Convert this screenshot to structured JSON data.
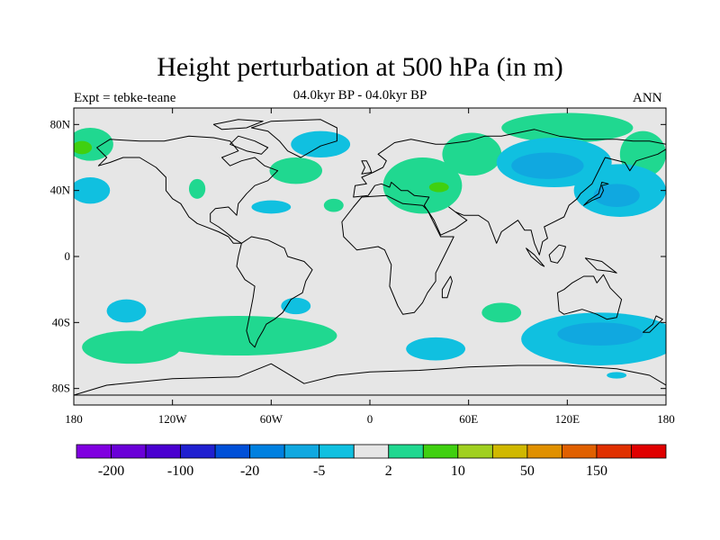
{
  "title": "Height perturbation at 500 hPa (in m)",
  "subtitle": "04.0kyr BP - 04.0kyr BP",
  "left_label": "Expt = tebke-teane",
  "right_label": "ANN",
  "map": {
    "projection": "cylindrical-equidistant",
    "lon_range": [
      -180,
      180
    ],
    "lat_range": [
      -90,
      90
    ],
    "lon_ticks": [
      {
        "value": -180,
        "label": "180"
      },
      {
        "value": -120,
        "label": "120W"
      },
      {
        "value": -60,
        "label": "60W"
      },
      {
        "value": 0,
        "label": "0"
      },
      {
        "value": 60,
        "label": "60E"
      },
      {
        "value": 120,
        "label": "120E"
      },
      {
        "value": 180,
        "label": "180"
      }
    ],
    "lat_ticks": [
      {
        "value": 80,
        "label": "80N"
      },
      {
        "value": 40,
        "label": "40N"
      },
      {
        "value": 0,
        "label": "0"
      },
      {
        "value": -40,
        "label": "40S"
      },
      {
        "value": -80,
        "label": "80S"
      }
    ],
    "background_color": "#e6e6e6"
  },
  "colorbar": {
    "colors": [
      "#8000e0",
      "#6a00d8",
      "#4a00d0",
      "#2020d0",
      "#0050d8",
      "#0080e0",
      "#10a8e0",
      "#10c0e0",
      "#e6e6e6",
      "#20d890",
      "#40d010",
      "#a0d020",
      "#d0b800",
      "#e09000",
      "#e06000",
      "#e03000",
      "#e00000"
    ],
    "labels": [
      {
        "boundary": 1,
        "text": "-200"
      },
      {
        "boundary": 3,
        "text": "-100"
      },
      {
        "boundary": 5,
        "text": "-20"
      },
      {
        "boundary": 7,
        "text": "-5"
      },
      {
        "boundary": 9,
        "text": "2"
      },
      {
        "boundary": 11,
        "text": "10"
      },
      {
        "boundary": 13,
        "text": "50"
      },
      {
        "boundary": 15,
        "text": "150"
      }
    ]
  },
  "regions": [
    {
      "color": "#10c0e0",
      "lon": -30,
      "lat": 68,
      "rlon": 18,
      "rlat": 8
    },
    {
      "color": "#20d890",
      "lon": -45,
      "lat": 52,
      "rlon": 16,
      "rlat": 8
    },
    {
      "color": "#10c0e0",
      "lon": -170,
      "lat": 40,
      "rlon": 12,
      "rlat": 8
    },
    {
      "color": "#20d890",
      "lon": -170,
      "lat": 68,
      "rlon": 14,
      "rlat": 10
    },
    {
      "color": "#40d010",
      "lon": -175,
      "lat": 66,
      "rlon": 6,
      "rlat": 4
    },
    {
      "color": "#20d890",
      "lon": -105,
      "lat": 41,
      "rlon": 5,
      "rlat": 6
    },
    {
      "color": "#10c0e0",
      "lon": -60,
      "lat": 30,
      "rlon": 12,
      "rlat": 4
    },
    {
      "color": "#20d890",
      "lon": -22,
      "lat": 31,
      "rlon": 6,
      "rlat": 4
    },
    {
      "color": "#20d890",
      "lon": 32,
      "lat": 43,
      "rlon": 24,
      "rlat": 17
    },
    {
      "color": "#20d890",
      "lon": 62,
      "lat": 62,
      "rlon": 18,
      "rlat": 13
    },
    {
      "color": "#40d010",
      "lon": 42,
      "lat": 42,
      "rlon": 6,
      "rlat": 3
    },
    {
      "color": "#20d890",
      "lon": 120,
      "lat": 78,
      "rlon": 40,
      "rlat": 9
    },
    {
      "color": "#20d890",
      "lon": 166,
      "lat": 62,
      "rlon": 14,
      "rlat": 14
    },
    {
      "color": "#10c0e0",
      "lon": 112,
      "lat": 57,
      "rlon": 35,
      "rlat": 15
    },
    {
      "color": "#10a8e0",
      "lon": 108,
      "lat": 55,
      "rlon": 22,
      "rlat": 8
    },
    {
      "color": "#10c0e0",
      "lon": 152,
      "lat": 40,
      "rlon": 28,
      "rlat": 16
    },
    {
      "color": "#10a8e0",
      "lon": 150,
      "lat": 37,
      "rlon": 14,
      "rlat": 7
    },
    {
      "color": "#10c0e0",
      "lon": -148,
      "lat": -33,
      "rlon": 12,
      "rlat": 7
    },
    {
      "color": "#10c0e0",
      "lon": -45,
      "lat": -30,
      "rlon": 9,
      "rlat": 5
    },
    {
      "color": "#20d890",
      "lon": -80,
      "lat": -48,
      "rlon": 60,
      "rlat": 12
    },
    {
      "color": "#20d890",
      "lon": -145,
      "lat": -55,
      "rlon": 30,
      "rlat": 10
    },
    {
      "color": "#20d890",
      "lon": 80,
      "lat": -34,
      "rlon": 12,
      "rlat": 6
    },
    {
      "color": "#10c0e0",
      "lon": 40,
      "lat": -56,
      "rlon": 18,
      "rlat": 7
    },
    {
      "color": "#10c0e0",
      "lon": 140,
      "lat": -50,
      "rlon": 48,
      "rlat": 16
    },
    {
      "color": "#10a8e0",
      "lon": 140,
      "lat": -47,
      "rlon": 26,
      "rlat": 7
    },
    {
      "color": "#10c0e0",
      "lon": 150,
      "lat": -72,
      "rlon": 6,
      "rlat": 2
    }
  ],
  "continents": [
    {
      "name": "north-america",
      "points": [
        [
          -166,
          66
        ],
        [
          -158,
          71
        ],
        [
          -140,
          70
        ],
        [
          -125,
          70
        ],
        [
          -110,
          73
        ],
        [
          -95,
          72
        ],
        [
          -85,
          70
        ],
        [
          -80,
          64
        ],
        [
          -90,
          60
        ],
        [
          -85,
          55
        ],
        [
          -78,
          58
        ],
        [
          -70,
          60
        ],
        [
          -64,
          55
        ],
        [
          -56,
          52
        ],
        [
          -62,
          46
        ],
        [
          -70,
          43
        ],
        [
          -75,
          38
        ],
        [
          -80,
          32
        ],
        [
          -81,
          25
        ],
        [
          -86,
          30
        ],
        [
          -94,
          29
        ],
        [
          -97,
          26
        ],
        [
          -97,
          21
        ],
        [
          -92,
          18
        ],
        [
          -88,
          15
        ],
        [
          -83,
          11
        ],
        [
          -78,
          8
        ],
        [
          -83,
          8
        ],
        [
          -86,
          12
        ],
        [
          -92,
          15
        ],
        [
          -105,
          20
        ],
        [
          -110,
          24
        ],
        [
          -115,
          32
        ],
        [
          -120,
          35
        ],
        [
          -124,
          40
        ],
        [
          -124,
          48
        ],
        [
          -130,
          54
        ],
        [
          -140,
          60
        ],
        [
          -150,
          60
        ],
        [
          -158,
          57
        ],
        [
          -165,
          55
        ],
        [
          -160,
          60
        ],
        [
          -166,
          66
        ]
      ]
    },
    {
      "name": "greenland",
      "points": [
        [
          -72,
          78
        ],
        [
          -60,
          82
        ],
        [
          -30,
          83
        ],
        [
          -20,
          78
        ],
        [
          -20,
          70
        ],
        [
          -30,
          67
        ],
        [
          -42,
          60
        ],
        [
          -50,
          64
        ],
        [
          -55,
          70
        ],
        [
          -62,
          76
        ],
        [
          -72,
          78
        ]
      ]
    },
    {
      "name": "south-america",
      "points": [
        [
          -78,
          8
        ],
        [
          -72,
          12
        ],
        [
          -62,
          10
        ],
        [
          -52,
          5
        ],
        [
          -50,
          0
        ],
        [
          -40,
          -3
        ],
        [
          -35,
          -8
        ],
        [
          -39,
          -15
        ],
        [
          -41,
          -22
        ],
        [
          -48,
          -26
        ],
        [
          -53,
          -34
        ],
        [
          -58,
          -38
        ],
        [
          -63,
          -41
        ],
        [
          -65,
          -45
        ],
        [
          -68,
          -50
        ],
        [
          -70,
          -55
        ],
        [
          -73,
          -52
        ],
        [
          -75,
          -45
        ],
        [
          -73,
          -35
        ],
        [
          -71,
          -25
        ],
        [
          -70,
          -18
        ],
        [
          -76,
          -14
        ],
        [
          -81,
          -6
        ],
        [
          -80,
          0
        ],
        [
          -78,
          8
        ]
      ]
    },
    {
      "name": "africa",
      "points": [
        [
          -17,
          21
        ],
        [
          -10,
          30
        ],
        [
          -5,
          36
        ],
        [
          10,
          37
        ],
        [
          20,
          32
        ],
        [
          32,
          31
        ],
        [
          35,
          28
        ],
        [
          43,
          12
        ],
        [
          51,
          12
        ],
        [
          45,
          0
        ],
        [
          40,
          -10
        ],
        [
          40,
          -15
        ],
        [
          35,
          -22
        ],
        [
          32,
          -28
        ],
        [
          27,
          -34
        ],
        [
          20,
          -35
        ],
        [
          17,
          -30
        ],
        [
          12,
          -18
        ],
        [
          13,
          -5
        ],
        [
          9,
          4
        ],
        [
          5,
          6
        ],
        [
          -8,
          4
        ],
        [
          -16,
          12
        ],
        [
          -17,
          21
        ]
      ]
    },
    {
      "name": "eurasia",
      "points": [
        [
          -10,
          36
        ],
        [
          -9,
          43
        ],
        [
          -2,
          44
        ],
        [
          -5,
          48
        ],
        [
          2,
          51
        ],
        [
          8,
          54
        ],
        [
          10,
          58
        ],
        [
          5,
          62
        ],
        [
          15,
          69
        ],
        [
          25,
          71
        ],
        [
          40,
          68
        ],
        [
          45,
          68
        ],
        [
          60,
          70
        ],
        [
          70,
          73
        ],
        [
          80,
          73
        ],
        [
          100,
          77
        ],
        [
          115,
          73
        ],
        [
          130,
          71
        ],
        [
          150,
          71
        ],
        [
          160,
          70
        ],
        [
          170,
          70
        ],
        [
          180,
          68
        ],
        [
          180,
          65
        ],
        [
          175,
          62
        ],
        [
          162,
          58
        ],
        [
          158,
          52
        ],
        [
          155,
          57
        ],
        [
          143,
          60
        ],
        [
          140,
          54
        ],
        [
          135,
          44
        ],
        [
          128,
          38
        ],
        [
          126,
          35
        ],
        [
          121,
          31
        ],
        [
          118,
          24
        ],
        [
          110,
          20
        ],
        [
          106,
          18
        ],
        [
          108,
          11
        ],
        [
          105,
          9
        ],
        [
          103,
          1
        ],
        [
          100,
          8
        ],
        [
          98,
          16
        ],
        [
          94,
          16
        ],
        [
          90,
          22
        ],
        [
          80,
          15
        ],
        [
          77,
          8
        ],
        [
          72,
          21
        ],
        [
          66,
          25
        ],
        [
          57,
          25
        ],
        [
          52,
          27
        ],
        [
          48,
          30
        ],
        [
          56,
          24
        ],
        [
          59,
          22
        ],
        [
          52,
          17
        ],
        [
          43,
          13
        ],
        [
          39,
          22
        ],
        [
          33,
          31
        ],
        [
          36,
          36
        ],
        [
          27,
          37
        ],
        [
          23,
          40
        ],
        [
          19,
          40
        ],
        [
          13,
          45
        ],
        [
          12,
          42
        ],
        [
          7,
          44
        ],
        [
          3,
          43
        ],
        [
          -1,
          37
        ],
        [
          -10,
          36
        ]
      ]
    },
    {
      "name": "australia",
      "points": [
        [
          114,
          -22
        ],
        [
          118,
          -20
        ],
        [
          123,
          -16
        ],
        [
          130,
          -12
        ],
        [
          136,
          -12
        ],
        [
          138,
          -16
        ],
        [
          142,
          -11
        ],
        [
          146,
          -19
        ],
        [
          153,
          -26
        ],
        [
          150,
          -37
        ],
        [
          144,
          -38
        ],
        [
          138,
          -35
        ],
        [
          135,
          -34
        ],
        [
          129,
          -32
        ],
        [
          118,
          -35
        ],
        [
          115,
          -33
        ],
        [
          114,
          -22
        ]
      ]
    },
    {
      "name": "antarctica",
      "points": [
        [
          -180,
          -84
        ],
        [
          -160,
          -78
        ],
        [
          -120,
          -74
        ],
        [
          -80,
          -73
        ],
        [
          -60,
          -65
        ],
        [
          -55,
          -68
        ],
        [
          -40,
          -77
        ],
        [
          -20,
          -72
        ],
        [
          0,
          -70
        ],
        [
          30,
          -69
        ],
        [
          60,
          -67
        ],
        [
          90,
          -66
        ],
        [
          120,
          -66
        ],
        [
          150,
          -68
        ],
        [
          170,
          -72
        ],
        [
          180,
          -78
        ],
        [
          180,
          -84
        ]
      ]
    },
    {
      "name": "uk",
      "points": [
        [
          -5,
          50
        ],
        [
          1,
          51
        ],
        [
          0,
          54
        ],
        [
          -2,
          58
        ],
        [
          -5,
          58
        ],
        [
          -3,
          54
        ],
        [
          -5,
          50
        ]
      ]
    },
    {
      "name": "japan",
      "points": [
        [
          130,
          31
        ],
        [
          135,
          34
        ],
        [
          140,
          36
        ],
        [
          142,
          40
        ],
        [
          141,
          43
        ],
        [
          145,
          44
        ],
        [
          141,
          45
        ],
        [
          139,
          38
        ],
        [
          133,
          34
        ],
        [
          130,
          31
        ]
      ]
    },
    {
      "name": "madagascar",
      "points": [
        [
          44,
          -25
        ],
        [
          47,
          -25
        ],
        [
          50,
          -15
        ],
        [
          49,
          -12
        ],
        [
          44,
          -20
        ],
        [
          44,
          -25
        ]
      ]
    },
    {
      "name": "new-zealand",
      "points": [
        [
          166,
          -46
        ],
        [
          172,
          -41
        ],
        [
          174,
          -36
        ],
        [
          178,
          -38
        ],
        [
          174,
          -42
        ],
        [
          170,
          -46
        ],
        [
          166,
          -46
        ]
      ]
    },
    {
      "name": "new-guinea",
      "points": [
        [
          131,
          -1
        ],
        [
          141,
          -3
        ],
        [
          150,
          -10
        ],
        [
          146,
          -9
        ],
        [
          138,
          -8
        ],
        [
          131,
          -1
        ]
      ]
    },
    {
      "name": "borneo",
      "points": [
        [
          109,
          1
        ],
        [
          115,
          7
        ],
        [
          119,
          6
        ],
        [
          117,
          0
        ],
        [
          114,
          -4
        ],
        [
          110,
          -3
        ],
        [
          109,
          1
        ]
      ]
    },
    {
      "name": "sumatra",
      "points": [
        [
          95,
          5
        ],
        [
          100,
          1
        ],
        [
          106,
          -6
        ],
        [
          104,
          -5
        ],
        [
          98,
          0
        ],
        [
          95,
          5
        ]
      ]
    },
    {
      "name": "baffin",
      "points": [
        [
          -80,
          73
        ],
        [
          -70,
          70
        ],
        [
          -62,
          66
        ],
        [
          -66,
          62
        ],
        [
          -75,
          64
        ],
        [
          -85,
          68
        ],
        [
          -80,
          73
        ]
      ]
    },
    {
      "name": "ellesmere",
      "points": [
        [
          -90,
          77
        ],
        [
          -75,
          78
        ],
        [
          -65,
          82
        ],
        [
          -80,
          83
        ],
        [
          -95,
          80
        ],
        [
          -90,
          77
        ]
      ]
    }
  ]
}
